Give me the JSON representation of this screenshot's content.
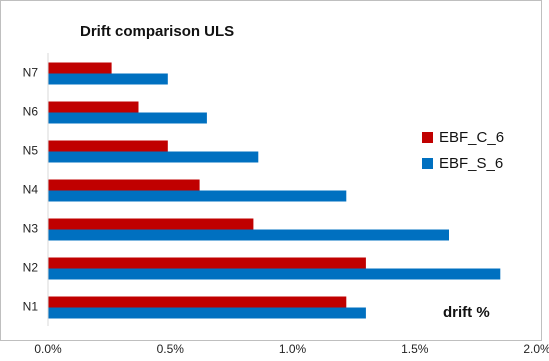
{
  "chart_data": {
    "type": "bar",
    "orientation": "horizontal",
    "title": "Drift comparison ULS",
    "annotation": "drift %",
    "categories": [
      "N1",
      "N2",
      "N3",
      "N4",
      "N5",
      "N6",
      "N7"
    ],
    "series": [
      {
        "name": "EBF_C_6",
        "color": "#C00000",
        "values": [
          1.22,
          1.3,
          0.84,
          0.62,
          0.49,
          0.37,
          0.26
        ]
      },
      {
        "name": "EBF_S_6",
        "color": "#0070C0",
        "values": [
          1.3,
          1.85,
          1.64,
          1.22,
          0.86,
          0.65,
          0.49
        ]
      }
    ],
    "xlim": [
      0,
      2.0
    ],
    "xticks": [
      "0.0%",
      "0.5%",
      "1.0%",
      "1.5%",
      "2.0%"
    ],
    "legend_position": "right",
    "grid": false
  }
}
